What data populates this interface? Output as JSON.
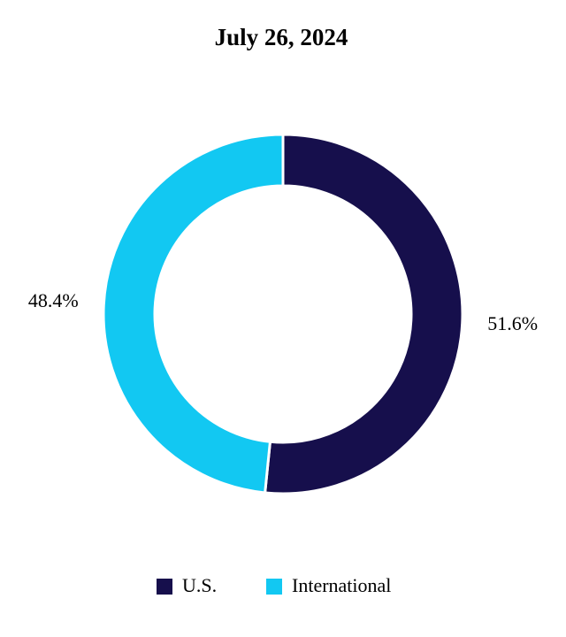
{
  "chart_data": {
    "type": "pie",
    "donut": true,
    "title": "July 26, 2024",
    "categories": [
      "U.S.",
      "International"
    ],
    "values": [
      51.6,
      48.4
    ],
    "value_labels": [
      "51.6%",
      "48.4%"
    ],
    "colors": [
      "#160f4c",
      "#12c8f2"
    ],
    "legend": "bottom"
  }
}
